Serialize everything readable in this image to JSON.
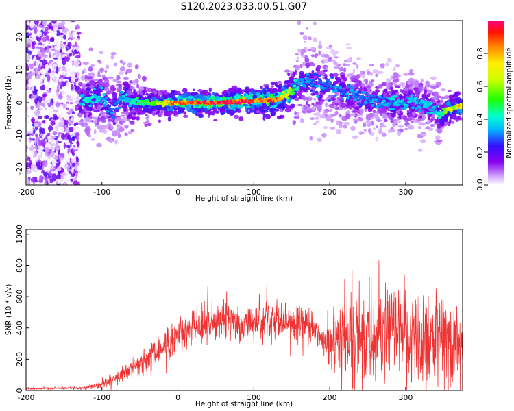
{
  "title": "S120.2023.033.00.51.G07",
  "chart_data": [
    {
      "type": "heatmap",
      "name": "spectrogram",
      "xlabel": "Height of straight line (km)",
      "ylabel": "Frequency (Hz)",
      "xlim": [
        -200,
        375
      ],
      "ylim": [
        -25,
        25
      ],
      "xticks": [
        -200,
        -100,
        0,
        100,
        200,
        300
      ],
      "yticks": [
        -20,
        -10,
        0,
        10,
        20
      ],
      "colorbar": {
        "label": "Normalized spectral amplitude",
        "range": [
          0,
          1
        ],
        "ticks": [
          0.0,
          0.2,
          0.4,
          0.6,
          0.8
        ]
      },
      "ridge": {
        "x": [
          -200,
          -150,
          -130,
          -120,
          -100,
          -90,
          -80,
          -70,
          -60,
          -50,
          -30,
          0,
          50,
          100,
          130,
          150,
          160,
          180,
          200,
          220,
          250,
          280,
          300,
          320,
          340,
          345,
          355,
          375
        ],
        "y": [
          0,
          0,
          0,
          1,
          2,
          -3,
          0,
          2,
          0,
          0,
          0,
          0,
          0,
          0.5,
          1,
          3,
          6,
          6,
          5,
          3,
          1,
          0,
          0,
          0,
          -2,
          -4,
          -2,
          -1
        ],
        "spread": [
          0,
          0,
          3,
          3,
          4,
          5,
          4,
          4,
          3,
          2,
          1,
          0.6,
          0.6,
          0.8,
          1,
          2,
          4,
          5,
          4,
          4,
          3,
          3,
          3,
          3,
          2,
          2,
          1,
          1
        ],
        "amplitude": [
          0.15,
          0.15,
          0.35,
          0.4,
          0.35,
          0.3,
          0.3,
          0.35,
          0.4,
          0.45,
          0.55,
          0.9,
          0.95,
          0.9,
          0.85,
          0.55,
          0.35,
          0.3,
          0.3,
          0.3,
          0.3,
          0.35,
          0.35,
          0.35,
          0.35,
          0.4,
          0.6,
          0.75
        ]
      },
      "noise_region_x": [
        -200,
        -130
      ]
    },
    {
      "type": "line",
      "name": "snr",
      "xlabel": "Height of straight line (km)",
      "ylabel": "SNR (10 * v/v)",
      "xlim": [
        -200,
        375
      ],
      "ylim": [
        0,
        1030
      ],
      "xticks": [
        -200,
        -100,
        0,
        100,
        200,
        300
      ],
      "yticks": [
        0,
        200,
        400,
        600,
        800,
        1000
      ],
      "color": "#ee3333",
      "envelope": {
        "x": [
          -200,
          -130,
          -110,
          -100,
          -80,
          -60,
          -40,
          -20,
          0,
          20,
          40,
          60,
          80,
          100,
          120,
          140,
          160,
          180,
          195,
          200,
          220,
          240,
          260,
          280,
          300,
          320,
          340,
          360,
          375
        ],
        "mean": [
          12,
          15,
          25,
          40,
          80,
          140,
          200,
          270,
          330,
          400,
          440,
          460,
          420,
          430,
          470,
          450,
          450,
          380,
          300,
          280,
          320,
          360,
          340,
          350,
          330,
          340,
          330,
          320,
          300
        ],
        "amp": [
          6,
          8,
          15,
          25,
          40,
          60,
          80,
          100,
          110,
          110,
          110,
          110,
          100,
          100,
          120,
          110,
          110,
          90,
          70,
          220,
          280,
          300,
          300,
          300,
          300,
          300,
          280,
          260,
          200
        ]
      }
    }
  ]
}
